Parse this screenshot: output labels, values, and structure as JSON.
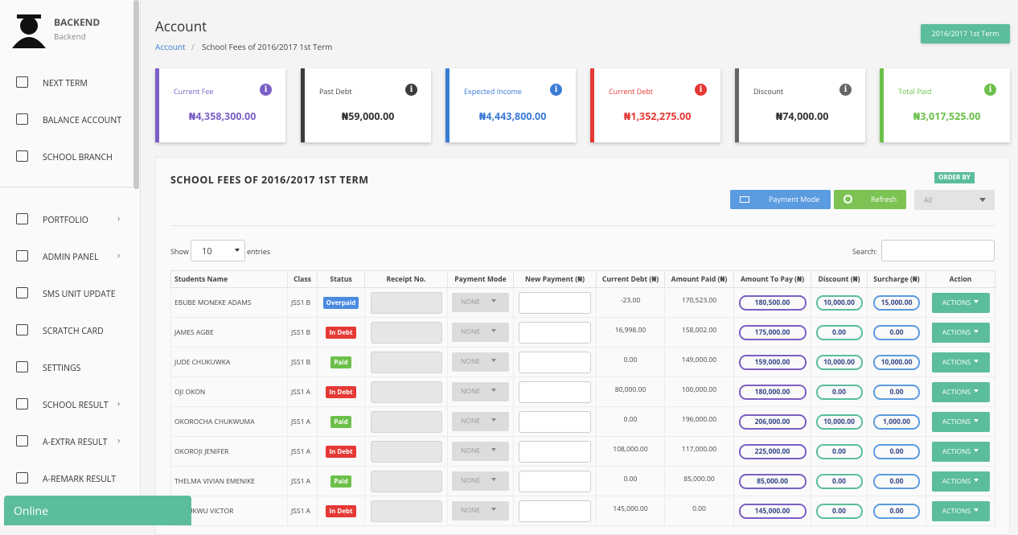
{
  "sidebar": {
    "brand": "BACKEND",
    "role": "Backend",
    "menu": [
      {
        "label": "NEXT TERM",
        "submenu": false
      },
      {
        "label": "BALANCE ACCOUNT",
        "submenu": false
      },
      {
        "label": "SCHOOL BRANCH",
        "submenu": false
      },
      {
        "label": "PORTFOLIO",
        "submenu": true
      },
      {
        "label": "ADMIN PANEL",
        "submenu": true
      },
      {
        "label": "SMS UNIT UPDATE",
        "submenu": false
      },
      {
        "label": "SCRATCH CARD",
        "submenu": false
      },
      {
        "label": "SETTINGS",
        "submenu": false
      },
      {
        "label": "SCHOOL RESULT",
        "submenu": true
      },
      {
        "label": "A-EXTRA RESULT",
        "submenu": true
      },
      {
        "label": "A-REMARK RESULT",
        "submenu": false
      }
    ],
    "status": "Online"
  },
  "header": {
    "title": "Account",
    "breadcrumb": [
      "Account",
      "School Fees of 2016/2017 1st Term"
    ],
    "term": "2016/2017 1st Term"
  },
  "cards": [
    {
      "label": "Current Fee",
      "value": "₦4,358,300.00",
      "color": "#7b5fc4"
    },
    {
      "label": "Past Debt",
      "value": "₦59,000.00",
      "color": "#3d3d3d"
    },
    {
      "label": "Expected Income",
      "value": "₦4,443,800.00",
      "color": "#3a7bd5"
    },
    {
      "label": "Current Debt",
      "value": "₦1,352,275.00",
      "color": "#e53935"
    },
    {
      "label": "Discount",
      "value": "₦74,000.00",
      "color": "#666666"
    },
    {
      "label": "Total Paid",
      "value": "₦3,017,525.00",
      "color": "#6cc04a"
    }
  ],
  "panel": {
    "title": "SCHOOL FEES OF 2016/2017 1ST TERM",
    "order_by": "ORDER BY",
    "buttons": [
      "Payment Mode",
      "Refresh"
    ],
    "filter": "All",
    "show": "Show",
    "page_size": "10",
    "entries": "entries",
    "search": "Search:"
  },
  "table": {
    "columns": [
      "Students Name",
      "Class",
      "Status",
      "Receipt No.",
      "Payment Mode",
      "New Payment (₦)",
      "Current Debt (₦)",
      "Amount Paid (₦)",
      "Amount To Pay (₦)",
      "Discount (₦)",
      "Surcharge (₦)",
      "Action"
    ],
    "rows": [
      {
        "name": "EBUBE MONEKE ADAMS",
        "class": "JSS1 B",
        "status": "Overpaid",
        "payment_mode": "NONE",
        "current_debt": "-23.00",
        "amount_paid": "170,523.00",
        "amount_to_pay": "180,500.00",
        "discount": "10,000.00",
        "surcharge": "15,000.00",
        "action": "ACTIONS"
      },
      {
        "name": "JAMES AGBE",
        "class": "JSS1 B",
        "status": "In Debt",
        "payment_mode": "NONE",
        "current_debt": "16,998.00",
        "amount_paid": "158,002.00",
        "amount_to_pay": "175,000.00",
        "discount": "0.00",
        "surcharge": "0.00",
        "action": "ACTIONS"
      },
      {
        "name": "JUDE CHUKUWKA",
        "class": "JSS1 B",
        "status": "Paid",
        "payment_mode": "NONE",
        "current_debt": "0.00",
        "amount_paid": "149,000.00",
        "amount_to_pay": "159,000.00",
        "discount": "10,000.00",
        "surcharge": "10,000.00",
        "action": "ACTIONS"
      },
      {
        "name": "OJI OKON",
        "class": "JSS1 A",
        "status": "In Debt",
        "payment_mode": "NONE",
        "current_debt": "80,000.00",
        "amount_paid": "100,000.00",
        "amount_to_pay": "180,000.00",
        "discount": "0.00",
        "surcharge": "0.00",
        "action": "ACTIONS"
      },
      {
        "name": "OKOROCHA CHUKWUMA",
        "class": "JSS1 A",
        "status": "Paid",
        "payment_mode": "NONE",
        "current_debt": "0.00",
        "amount_paid": "196,000.00",
        "amount_to_pay": "206,000.00",
        "discount": "10,000.00",
        "surcharge": "1,000.00",
        "action": "ACTIONS"
      },
      {
        "name": "OKOROJI JENIFER",
        "class": "JSS1 A",
        "status": "In Debt",
        "payment_mode": "NONE",
        "current_debt": "108,000.00",
        "amount_paid": "117,000.00",
        "amount_to_pay": "225,000.00",
        "discount": "0.00",
        "surcharge": "0.00",
        "action": "ACTIONS"
      },
      {
        "name": "THELMA VIVIAN EMENIKE",
        "class": "JSS1 A",
        "status": "Paid",
        "payment_mode": "NONE",
        "current_debt": "0.00",
        "amount_paid": "85,000.00",
        "amount_to_pay": "85,000.00",
        "discount": "0.00",
        "surcharge": "0.00",
        "action": "ACTIONS"
      },
      {
        "name": "ECHUKWU VICTOR",
        "class": "JSS1 A",
        "status": "In Debt",
        "payment_mode": "NONE",
        "current_debt": "145,000.00",
        "amount_paid": "0.00",
        "amount_to_pay": "145,000.00",
        "discount": "0.00",
        "surcharge": "0.00",
        "action": "ACTIONS"
      }
    ]
  }
}
